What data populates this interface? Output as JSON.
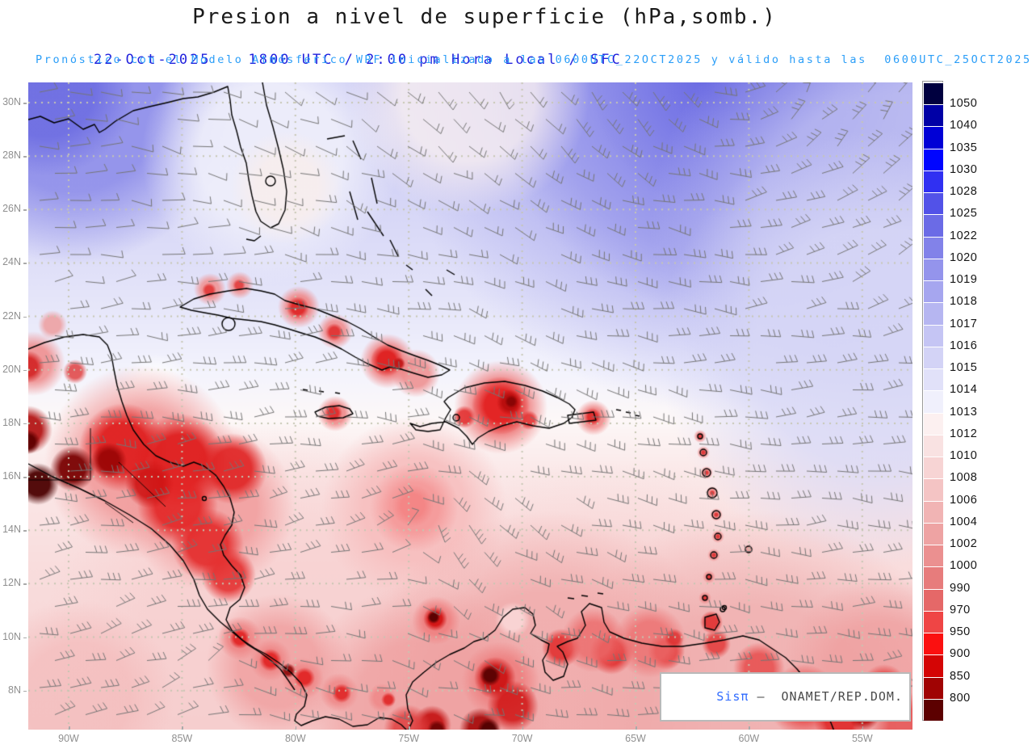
{
  "header": {
    "title": "Presion a nivel de superficie (hPa,somb.)",
    "date": "22-Oct-2025",
    "time": "1800 UTC / 2:00 pm Hora Local / SFC",
    "forecast": "Pronóstico con el Modelo Atmósferico WRF inicializado a las 0600UTC_22OCT2025 y válido hasta las  0600UTC_25OCT2025"
  },
  "colors": {
    "title_text": "#1a1a1a",
    "date_line": "#2222dd",
    "forecast_line": "#2b9ef8",
    "axis_label": "#8f8f8f",
    "colorbar_label": "#151515",
    "attribution_brand": "#2f6bff",
    "attribution_source": "#4a4a4a",
    "wind_barb": "#757575",
    "grid_dots": "#c6c6b2",
    "coastline": "#000000"
  },
  "map": {
    "lat_labels": [
      "30N",
      "28N",
      "26N",
      "24N",
      "22N",
      "20N",
      "18N",
      "16N",
      "14N",
      "12N",
      "10N",
      "8N"
    ],
    "lon_labels": [
      "90W",
      "85W",
      "80W",
      "75W",
      "70W",
      "65W",
      "60W",
      "55W"
    ],
    "attribution": {
      "brand": "Sisπ",
      "separator": "–",
      "source": "ONAMET/REP.DOM."
    }
  },
  "chart_data": {
    "type": "heatmap",
    "title": "Presion a nivel de superficie (hPa,somb.)",
    "variable": "surface pressure (shaded) with wind barbs",
    "units": "hPa",
    "model": "WRF",
    "valid_time": "22-Oct-2025 1800 UTC / 2:00 pm Hora Local / SFC",
    "init": "0600UTC_22OCT2025",
    "valid_until": "0600UTC_25OCT2025",
    "x_ticks_lon": [
      "90W",
      "85W",
      "80W",
      "75W",
      "70W",
      "65W",
      "60W",
      "55W"
    ],
    "y_ticks_lat": [
      "30N",
      "28N",
      "26N",
      "24N",
      "22N",
      "20N",
      "18N",
      "16N",
      "14N",
      "12N",
      "10N",
      "8N"
    ],
    "colorbar_levels": [
      1050,
      1040,
      1035,
      1030,
      1028,
      1025,
      1022,
      1020,
      1019,
      1018,
      1017,
      1016,
      1015,
      1014,
      1013,
      1012,
      1010,
      1008,
      1006,
      1004,
      1002,
      1000,
      990,
      970,
      950,
      900,
      850,
      800
    ],
    "palette": [
      "#00003f",
      "#0000a6",
      "#0000d6",
      "#0005ff",
      "#3030f2",
      "#5252e8",
      "#6b6be6",
      "#8282e9",
      "#9494ec",
      "#a6a6ef",
      "#b6b6f1",
      "#c5c5f4",
      "#d3d3f6",
      "#e1e1f9",
      "#f0f0fc",
      "#fcf0f0",
      "#f9e2e2",
      "#f7d4d4",
      "#f4c4c4",
      "#f1b4b4",
      "#eea3a3",
      "#eb9090",
      "#e77c7c",
      "#e56868",
      "#ef4545",
      "#fb1010",
      "#d40505",
      "#a00303",
      "#5c0000"
    ],
    "legend_position": "right",
    "grid": "dotted lat/lon grid every 2° lat / 5° lon",
    "features": [
      {
        "name": "surface high (blue shading ≈1020-1025 hPa)",
        "where": "western Atlantic, NE of map"
      },
      {
        "name": "secondary high (blue ≈1022 hPa)",
        "where": "NW Gulf of Mexico corner"
      },
      {
        "name": "broad low / tropical disturbance (pink core ≈1004-1008 hPa)",
        "where": "central Caribbean ≈14N 75W, cyclonic wind barbs"
      },
      {
        "name": "terrain-reduced pressure (red ≤1000 hPa, dark ≤850 hPa)",
        "where": "Cuba, Hispaniola, Jamaica, Puerto Rico, Central America, Andes of Colombia/Venezuela"
      }
    ]
  }
}
